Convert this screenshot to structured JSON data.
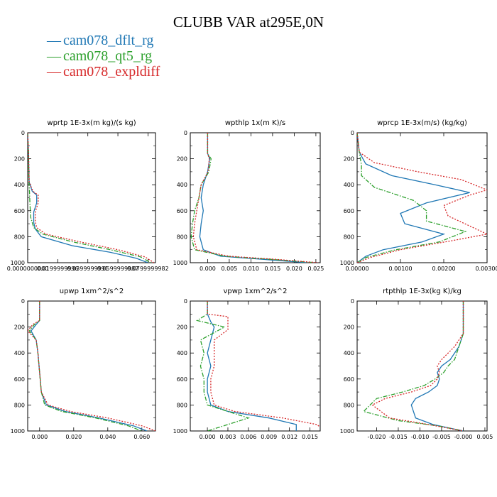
{
  "title": "CLUBB VAR at295E,0N",
  "legend": [
    {
      "label": "cam078_dflt_rg",
      "color": "#1f77b4",
      "dash": "solid"
    },
    {
      "label": "cam078_qt5_rg",
      "color": "#2ca02c",
      "dash": "dashdot"
    },
    {
      "label": "cam078_expldiff",
      "color": "#d62728",
      "dash": "dotted"
    }
  ],
  "chart_data": [
    {
      "type": "line",
      "title": "wprtp  1E-3x(m kg)/(s kg)",
      "ylim": [
        1000,
        0
      ],
      "xlim": [
        0,
        0.085
      ],
      "yticks": [
        0,
        200,
        400,
        600,
        800,
        1000
      ],
      "xticks": [
        0,
        0.02,
        0.04,
        0.06,
        0.08
      ],
      "xtick_labels": [
        "0.0000000000",
        "0.0199999996",
        "0.0399999991",
        "0.0599999987",
        "0.0799999982"
      ],
      "series": [
        {
          "name": "cam078_dflt_rg",
          "x": [
            0.0,
            0.0005,
            0.001,
            0.003,
            0.006,
            0.006,
            0.004,
            0.004,
            0.005,
            0.009,
            0.03,
            0.055,
            0.072,
            0.08
          ],
          "y": [
            0,
            150,
            380,
            450,
            480,
            540,
            610,
            690,
            740,
            800,
            870,
            920,
            965,
            1000
          ]
        },
        {
          "name": "cam078_qt5_rg",
          "x": [
            0.0,
            0.0005,
            0.0008,
            0.0012,
            0.0015,
            0.002,
            0.004,
            0.01,
            0.03,
            0.055,
            0.075,
            0.082
          ],
          "y": [
            0,
            150,
            380,
            450,
            550,
            650,
            730,
            780,
            840,
            900,
            955,
            1000
          ]
        },
        {
          "name": "cam078_expldiff",
          "x": [
            0.0,
            0.0006,
            0.001,
            0.0035,
            0.007,
            0.007,
            0.005,
            0.005,
            0.006,
            0.012,
            0.035,
            0.06,
            0.078,
            0.084
          ],
          "y": [
            0,
            150,
            380,
            450,
            480,
            540,
            610,
            680,
            730,
            780,
            840,
            900,
            955,
            1000
          ]
        }
      ]
    },
    {
      "type": "line",
      "title": "wpthlp  1x(m K)/s",
      "ylim": [
        1000,
        0
      ],
      "xlim": [
        -0.004,
        0.026
      ],
      "yticks": [
        0,
        200,
        400,
        600,
        800,
        1000
      ],
      "xticks": [
        0,
        0.005,
        0.01,
        0.015,
        0.02,
        0.025
      ],
      "xtick_labels": [
        "0.000",
        "0.005",
        "0.010",
        "0.015",
        "0.020",
        "0.025"
      ],
      "series": [
        {
          "name": "cam078_dflt_rg",
          "x": [
            0.0,
            0.0,
            0.0005,
            0.0,
            -0.001,
            -0.0015,
            -0.001,
            -0.0015,
            -0.0018,
            -0.001,
            0.003,
            0.013,
            0.023
          ],
          "y": [
            0,
            160,
            200,
            300,
            400,
            500,
            600,
            700,
            800,
            900,
            950,
            975,
            1000
          ]
        },
        {
          "name": "cam078_qt5_rg",
          "x": [
            0.0,
            0.0,
            0.0008,
            0.0003,
            -0.0015,
            -0.002,
            -0.003,
            -0.0035,
            -0.0038,
            -0.003,
            0.004,
            0.015,
            0.025
          ],
          "y": [
            0,
            160,
            200,
            300,
            400,
            500,
            600,
            700,
            800,
            900,
            950,
            975,
            1000
          ]
        },
        {
          "name": "cam078_expldiff",
          "x": [
            0.0,
            0.0,
            0.0004,
            0.0001,
            -0.0015,
            -0.002,
            -0.0025,
            -0.003,
            -0.0033,
            -0.0025,
            0.005,
            0.016,
            0.0255
          ],
          "y": [
            0,
            160,
            200,
            300,
            400,
            500,
            600,
            700,
            800,
            900,
            950,
            975,
            1000
          ]
        }
      ]
    },
    {
      "type": "line",
      "title": "wprcp  1E-3x(m/s) (kg/kg)",
      "ylim": [
        1000,
        0
      ],
      "xlim": [
        0,
        0.003
      ],
      "yticks": [
        0,
        200,
        400,
        600,
        800,
        1000
      ],
      "xticks": [
        0,
        0.001,
        0.002,
        0.003
      ],
      "xtick_labels": [
        "0.00000",
        "0.00100",
        "0.00200",
        "0.00300"
      ],
      "series": [
        {
          "name": "cam078_dflt_rg",
          "x": [
            0.0,
            5e-05,
            0.0002,
            0.0008,
            0.0018,
            0.0026,
            0.0016,
            0.001,
            0.0011,
            0.002,
            0.0015,
            0.0006,
            0.0002,
            0.0
          ],
          "y": [
            0,
            150,
            240,
            330,
            400,
            460,
            540,
            620,
            700,
            780,
            840,
            900,
            950,
            1000
          ]
        },
        {
          "name": "cam078_qt5_rg",
          "x": [
            0.0,
            5e-05,
            0.0001,
            0.0001,
            0.0004,
            0.0013,
            0.0016,
            0.0016,
            0.0025,
            0.0019,
            0.0009,
            0.0002,
            0.0
          ],
          "y": [
            0,
            150,
            250,
            330,
            420,
            520,
            600,
            680,
            760,
            840,
            900,
            960,
            1000
          ]
        },
        {
          "name": "cam078_expldiff",
          "x": [
            0.0,
            5e-05,
            0.0004,
            0.0014,
            0.0024,
            0.003,
            0.0026,
            0.002,
            0.0021,
            0.003,
            0.0022,
            0.001,
            0.0003,
            0.0
          ],
          "y": [
            0,
            150,
            230,
            300,
            360,
            440,
            480,
            560,
            640,
            780,
            830,
            900,
            960,
            1000
          ]
        }
      ]
    },
    {
      "type": "line",
      "title": "upwp  1xm^2/s^2",
      "ylim": [
        1000,
        0
      ],
      "xlim": [
        -0.007,
        0.068
      ],
      "yticks": [
        0,
        200,
        400,
        600,
        800,
        1000
      ],
      "xticks": [
        0,
        0.02,
        0.04,
        0.06
      ],
      "xtick_labels": [
        "0.000",
        "0.020",
        "0.040",
        "0.060"
      ],
      "series": [
        {
          "name": "cam078_dflt_rg",
          "x": [
            0.0,
            0.0,
            -0.002,
            -0.005,
            -0.002,
            -0.001,
            0.0,
            0.001,
            0.004,
            0.015,
            0.035,
            0.055,
            0.063
          ],
          "y": [
            0,
            150,
            180,
            230,
            300,
            400,
            550,
            700,
            800,
            850,
            900,
            960,
            1000
          ]
        },
        {
          "name": "cam078_qt5_rg",
          "x": [
            0.0,
            0.0,
            -0.003,
            -0.006,
            -0.002,
            -0.001,
            0.0,
            0.001,
            0.003,
            0.013,
            0.033,
            0.052,
            0.06
          ],
          "y": [
            0,
            150,
            180,
            230,
            300,
            400,
            550,
            700,
            800,
            850,
            900,
            960,
            1000
          ]
        },
        {
          "name": "cam078_expldiff",
          "x": [
            0.0,
            0.0,
            -0.004,
            -0.007,
            -0.002,
            -0.001,
            0.0,
            0.001,
            0.005,
            0.018,
            0.04,
            0.06,
            0.068
          ],
          "y": [
            0,
            150,
            180,
            230,
            300,
            400,
            550,
            700,
            800,
            850,
            900,
            960,
            1000
          ]
        }
      ]
    },
    {
      "type": "line",
      "title": "vpwp  1xm^2/s^2",
      "ylim": [
        1000,
        0
      ],
      "xlim": [
        -0.0025,
        0.0165
      ],
      "yticks": [
        0,
        200,
        400,
        600,
        800,
        1000
      ],
      "xticks": [
        0,
        0.003,
        0.006,
        0.009,
        0.012,
        0.015
      ],
      "xtick_labels": [
        "0.000",
        "0.003",
        "0.006",
        "0.009",
        "0.012",
        "0.015"
      ],
      "series": [
        {
          "name": "cam078_dflt_rg",
          "x": [
            0.0,
            0.0,
            0.0005,
            0.001,
            0.0005,
            0.0,
            0.0005,
            0.0,
            0.0,
            0.0005,
            0.003,
            0.009,
            0.013,
            0.013
          ],
          "y": [
            0,
            100,
            160,
            200,
            300,
            400,
            500,
            600,
            700,
            800,
            850,
            900,
            950,
            1000
          ]
        },
        {
          "name": "cam078_qt5_rg",
          "x": [
            0.0,
            0.0,
            -0.0015,
            0.0025,
            -0.001,
            -0.0005,
            -0.001,
            -0.0005,
            -0.0005,
            0.0,
            0.003,
            0.006,
            0.003,
            0.0
          ],
          "y": [
            0,
            100,
            150,
            200,
            300,
            400,
            500,
            600,
            700,
            800,
            850,
            900,
            950,
            1000
          ]
        },
        {
          "name": "cam078_expldiff",
          "x": [
            0.0,
            0.0,
            0.003,
            0.003,
            0.001,
            0.001,
            0.001,
            0.0005,
            0.0005,
            0.001,
            0.004,
            0.011,
            0.016,
            0.0165
          ],
          "y": [
            0,
            100,
            120,
            220,
            300,
            400,
            500,
            600,
            700,
            800,
            850,
            900,
            950,
            970
          ]
        }
      ]
    },
    {
      "type": "line",
      "title": "rtpthlp  1E-3x(kg K)/kg",
      "ylim": [
        1000,
        0
      ],
      "xlim": [
        -0.0245,
        0.0055
      ],
      "yticks": [
        0,
        200,
        400,
        600,
        800,
        1000
      ],
      "xticks": [
        -0.02,
        -0.015,
        -0.01,
        -0.005,
        0,
        0.005
      ],
      "xtick_labels": [
        "-0.020",
        "-0.015",
        "-0.010",
        "-0.005",
        "-0.000",
        "0.005"
      ],
      "series": [
        {
          "name": "cam078_dflt_rg",
          "x": [
            0.0,
            0.0,
            -0.001,
            -0.003,
            -0.005,
            -0.006,
            -0.0055,
            -0.006,
            -0.008,
            -0.011,
            -0.012,
            -0.011,
            -0.007,
            0.0
          ],
          "y": [
            0,
            250,
            350,
            450,
            500,
            550,
            600,
            650,
            700,
            750,
            800,
            900,
            950,
            1000
          ]
        },
        {
          "name": "cam078_qt5_rg",
          "x": [
            0.0,
            0.0,
            -0.001,
            -0.002,
            -0.0035,
            -0.0045,
            -0.0065,
            -0.009,
            -0.014,
            -0.02,
            -0.023,
            -0.015,
            -0.006,
            0.0
          ],
          "y": [
            0,
            250,
            350,
            450,
            500,
            550,
            600,
            650,
            700,
            750,
            850,
            920,
            960,
            1000
          ]
        },
        {
          "name": "cam078_expldiff",
          "x": [
            0.0,
            0.0,
            -0.002,
            -0.005,
            -0.006,
            -0.0055,
            -0.006,
            -0.0075,
            -0.012,
            -0.018,
            -0.021,
            -0.017,
            -0.008,
            0.0
          ],
          "y": [
            0,
            250,
            350,
            450,
            500,
            550,
            600,
            650,
            700,
            750,
            800,
            900,
            950,
            1000
          ]
        }
      ]
    }
  ]
}
